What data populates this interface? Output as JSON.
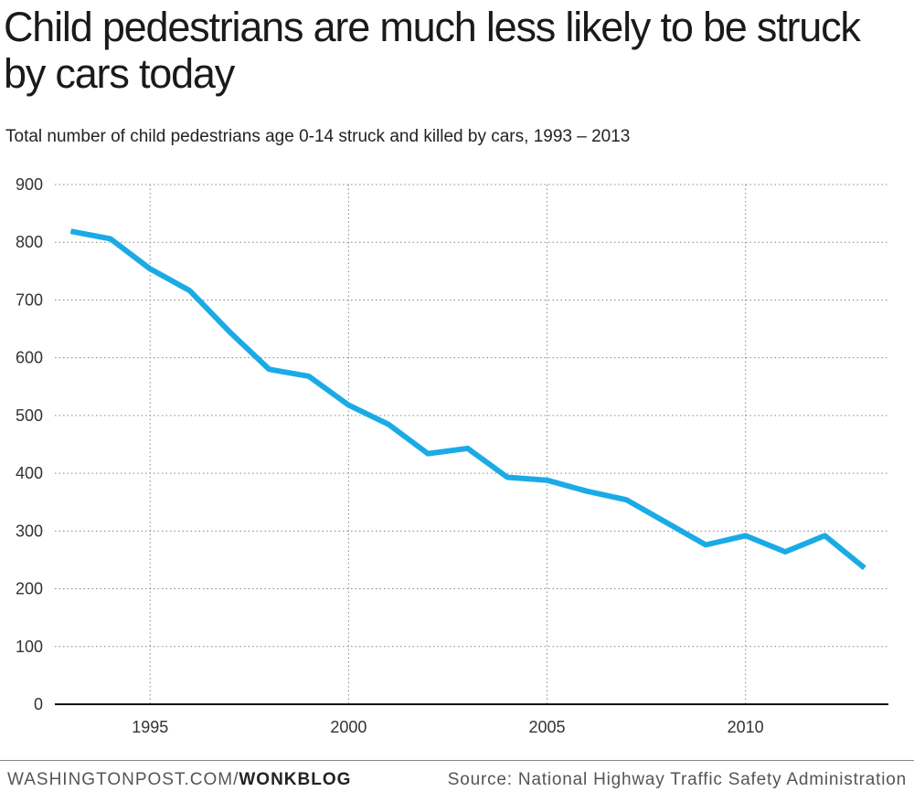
{
  "header": {
    "title": "Child pedestrians are much less likely to be struck by cars today",
    "subtitle": "Total number of child pedestrians age 0-14 struck and killed by cars, 1993 – 2013"
  },
  "footer": {
    "brand_prefix": "WASHINGTONPOST.COM/",
    "brand_suffix": "WONKBLOG",
    "source": "Source: National Highway Traffic Safety Administration"
  },
  "colors": {
    "line": "#1aabe6",
    "grid": "#888888",
    "axis": "#111111"
  },
  "chart_data": {
    "type": "line",
    "x": [
      1993,
      1994,
      1995,
      1996,
      1997,
      1998,
      1999,
      2000,
      2001,
      2002,
      2003,
      2004,
      2005,
      2006,
      2007,
      2008,
      2009,
      2010,
      2011,
      2012,
      2013
    ],
    "series": [
      {
        "values": [
          819,
          806,
          754,
          716,
          645,
          580,
          568,
          518,
          485,
          434,
          443,
          393,
          388,
          369,
          354,
          315,
          276,
          292,
          264,
          292,
          236
        ]
      }
    ],
    "xlim": [
      1992.6,
      2013.6
    ],
    "ylim": [
      0,
      900
    ],
    "y_ticks": [
      "0",
      "100",
      "200",
      "300",
      "400",
      "500",
      "600",
      "700",
      "800",
      "900"
    ],
    "x_ticks": [
      "1995",
      "2000",
      "2005",
      "2010"
    ],
    "grid": true,
    "xlabel": "",
    "ylabel": ""
  }
}
